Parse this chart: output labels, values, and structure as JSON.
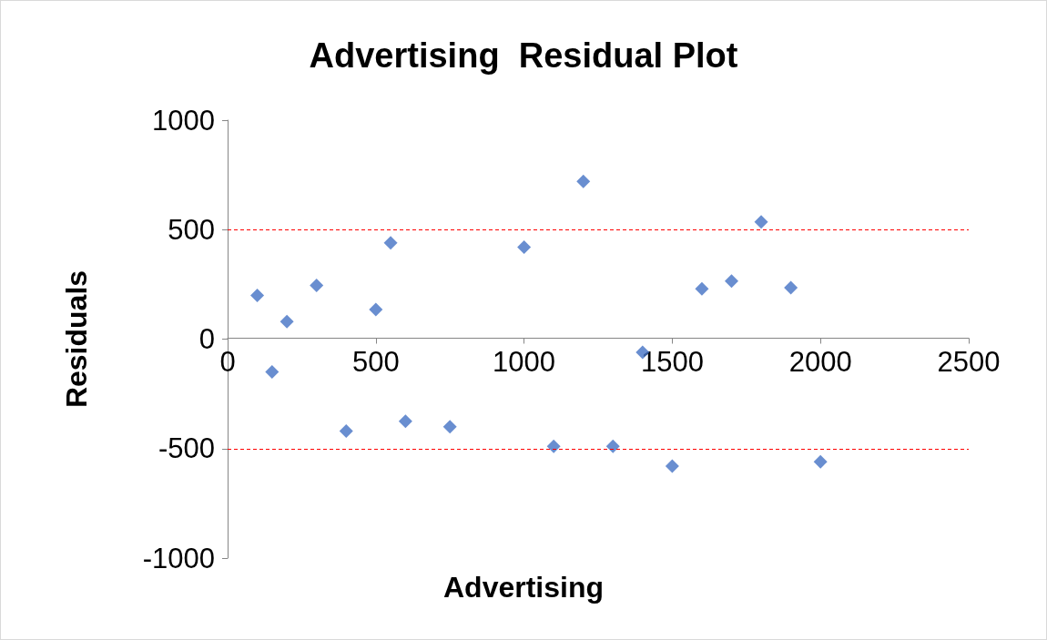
{
  "chart_data": {
    "type": "scatter",
    "title": "Advertising  Residual Plot",
    "xlabel": "Advertising",
    "ylabel": "Residuals",
    "x": [
      100,
      150,
      200,
      300,
      400,
      500,
      550,
      600,
      750,
      1000,
      1100,
      1200,
      1300,
      1400,
      1500,
      1600,
      1700,
      1800,
      1900,
      2000
    ],
    "series": [
      {
        "color": "#4472c4",
        "values": [
          200,
          -150,
          80,
          245,
          -420,
          135,
          440,
          -375,
          -400,
          420,
          -490,
          720,
          -490,
          -60,
          -580,
          230,
          265,
          535,
          235,
          -560
        ]
      }
    ],
    "xlim": [
      0,
      2500
    ],
    "xticks": [
      0,
      500,
      1000,
      1500,
      2000,
      2500
    ],
    "ylim": [
      -1000,
      1000
    ],
    "yticks": [
      -1000,
      -500,
      0,
      500,
      1000
    ],
    "ref_lines": [
      {
        "axis": "y",
        "value": 500,
        "color": "#ff0000",
        "line_style": "dashed"
      },
      {
        "axis": "y",
        "value": -500,
        "color": "#ff0000",
        "line_style": "dashed"
      }
    ],
    "marker": "diamond"
  }
}
